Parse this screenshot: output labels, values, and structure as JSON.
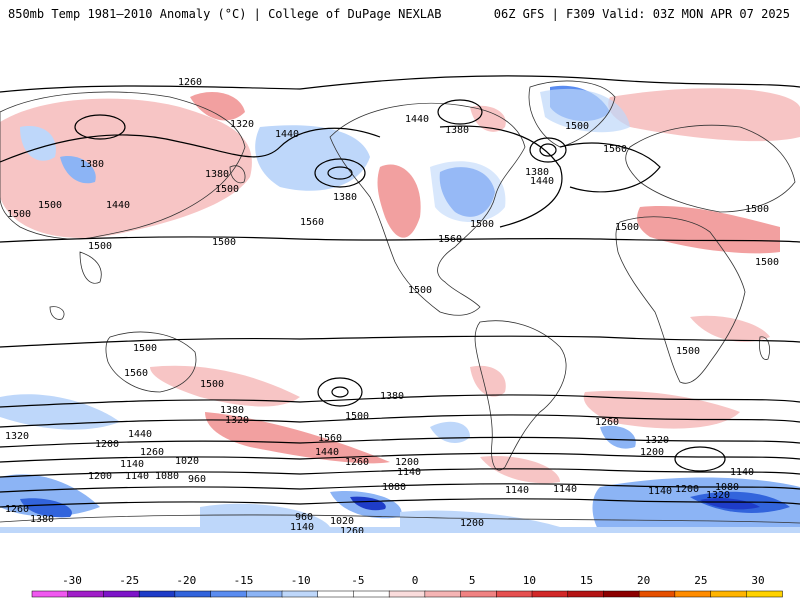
{
  "header": {
    "title_left": "850mb Temp 1981–2010 Anomaly (°C) | College of DuPage NEXLAB",
    "title_right": "06Z GFS | F309 Valid: 03Z MON APR 07 2025"
  },
  "map": {
    "variable": "850mb temperature anomaly",
    "units": "°C",
    "projection": "global cylindrical",
    "contour_variable": "850mb geopotential height",
    "contour_labels": [
      "1260",
      "1320",
      "1440",
      "1380",
      "1500",
      "1560",
      "1380",
      "1500",
      "1500",
      "1440",
      "1500",
      "1380",
      "1440",
      "1380",
      "1560",
      "1500",
      "1500",
      "1560",
      "1440",
      "1380",
      "1500",
      "1500",
      "1500",
      "1500",
      "1500",
      "1500",
      "1500",
      "1560",
      "1500",
      "1500",
      "1380",
      "1320",
      "1560",
      "1440",
      "1260",
      "1200",
      "1140",
      "1440",
      "1380",
      "1260",
      "1320",
      "1200",
      "1200",
      "1140",
      "1320",
      "1200",
      "1260",
      "1140",
      "1080",
      "1020",
      "960",
      "1140",
      "1080",
      "1140",
      "1200",
      "1140",
      "1080",
      "1320",
      "1200",
      "1140",
      "1020",
      "960",
      "1140",
      "1260",
      "1260",
      "1380"
    ]
  },
  "colorbar": {
    "ticks": [
      "-30",
      "-25",
      "-20",
      "-15",
      "-10",
      "-5",
      "0",
      "5",
      "10",
      "15",
      "20",
      "25",
      "30"
    ],
    "colors": [
      "#f058f0",
      "#a01ec8",
      "#7d14c8",
      "#1e3cc8",
      "#3264dc",
      "#5a8cf0",
      "#8cb4f5",
      "#bed7fa",
      "#ffffff",
      "#ffffff",
      "#fadcdc",
      "#f5b4b4",
      "#f08282",
      "#e65050",
      "#d22828",
      "#b41414",
      "#8c0000",
      "#e65000",
      "#ff8c00",
      "#ffb400",
      "#ffd200"
    ]
  }
}
